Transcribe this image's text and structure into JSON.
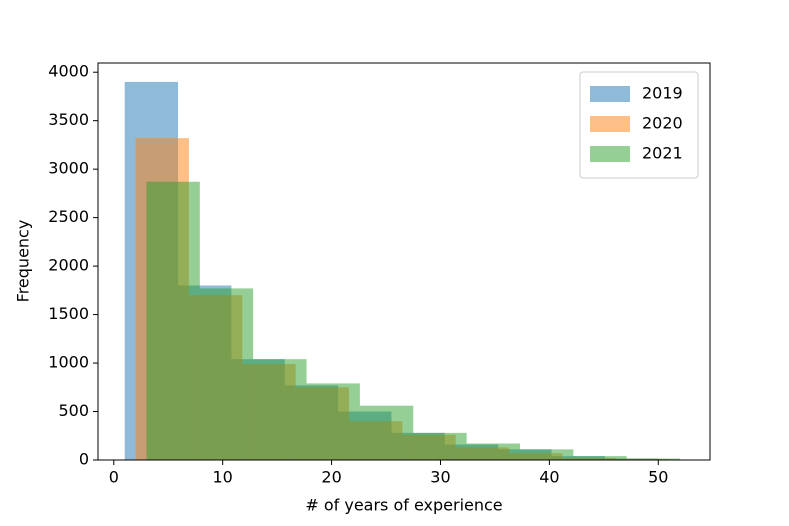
{
  "chart_data": {
    "type": "histogram",
    "xlabel": "# of years of experience",
    "ylabel": "Frequency",
    "xlim": [
      -1.45,
      54.75
    ],
    "ylim": [
      0,
      4095
    ],
    "xticks": [
      0,
      10,
      20,
      30,
      40,
      50
    ],
    "yticks": [
      0,
      500,
      1000,
      1500,
      2000,
      2500,
      3000,
      3500,
      4000
    ],
    "legend": "upper right",
    "alpha": 0.5,
    "series": [
      {
        "name": "2019",
        "color": "#1f77b4",
        "bins": [
          1,
          5.9,
          10.8,
          15.7,
          20.6,
          25.5,
          30.4,
          35.3,
          40.2,
          45.1,
          50
        ],
        "values": [
          3900,
          1800,
          1040,
          770,
          500,
          280,
          160,
          110,
          40,
          15
        ]
      },
      {
        "name": "2020",
        "color": "#ff7f0e",
        "bins": [
          2,
          6.9,
          11.8,
          16.7,
          21.6,
          26.5,
          31.4,
          36.3,
          41.2,
          46.1,
          51
        ],
        "values": [
          3320,
          1700,
          990,
          750,
          400,
          260,
          130,
          70,
          20,
          10
        ]
      },
      {
        "name": "2021",
        "color": "#2ca02c",
        "bins": [
          3,
          7.9,
          12.8,
          17.7,
          22.6,
          27.5,
          32.4,
          37.3,
          42.2,
          47.1,
          52
        ],
        "values": [
          2870,
          1770,
          1040,
          790,
          560,
          280,
          170,
          110,
          40,
          15
        ]
      }
    ]
  }
}
